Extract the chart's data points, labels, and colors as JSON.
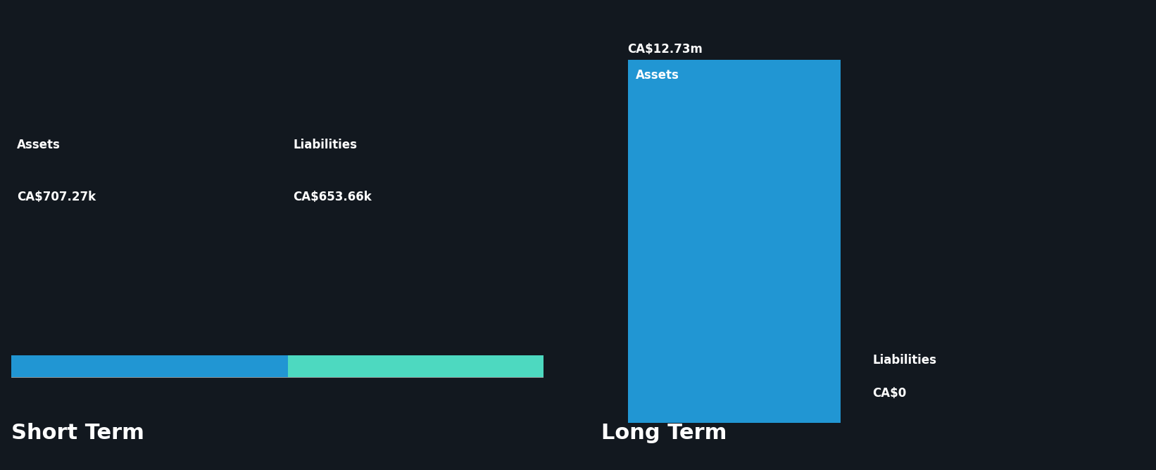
{
  "bg_color": "#12181F",
  "text_color": "#FFFFFF",
  "short_term": {
    "label": "Short Term",
    "assets_value": 707270,
    "liabilities_value": 653660,
    "assets_label": "CA$707.27k",
    "liabilities_label": "CA$653.66k",
    "assets_color": "#2196D3",
    "liabilities_color": "#4DD9C0"
  },
  "long_term": {
    "label": "Long Term",
    "assets_value": 12730000,
    "liabilities_value": 0,
    "assets_label": "CA$12.73m",
    "liabilities_label": "CA$0",
    "assets_color": "#2196D3",
    "liabilities_color": "#4DD9C0"
  },
  "divider_color": "#AAAAAA",
  "category_label_fontsize": 12,
  "value_label_fontsize": 12,
  "section_title_fontsize": 22,
  "bar_inner_label_fontsize": 12
}
